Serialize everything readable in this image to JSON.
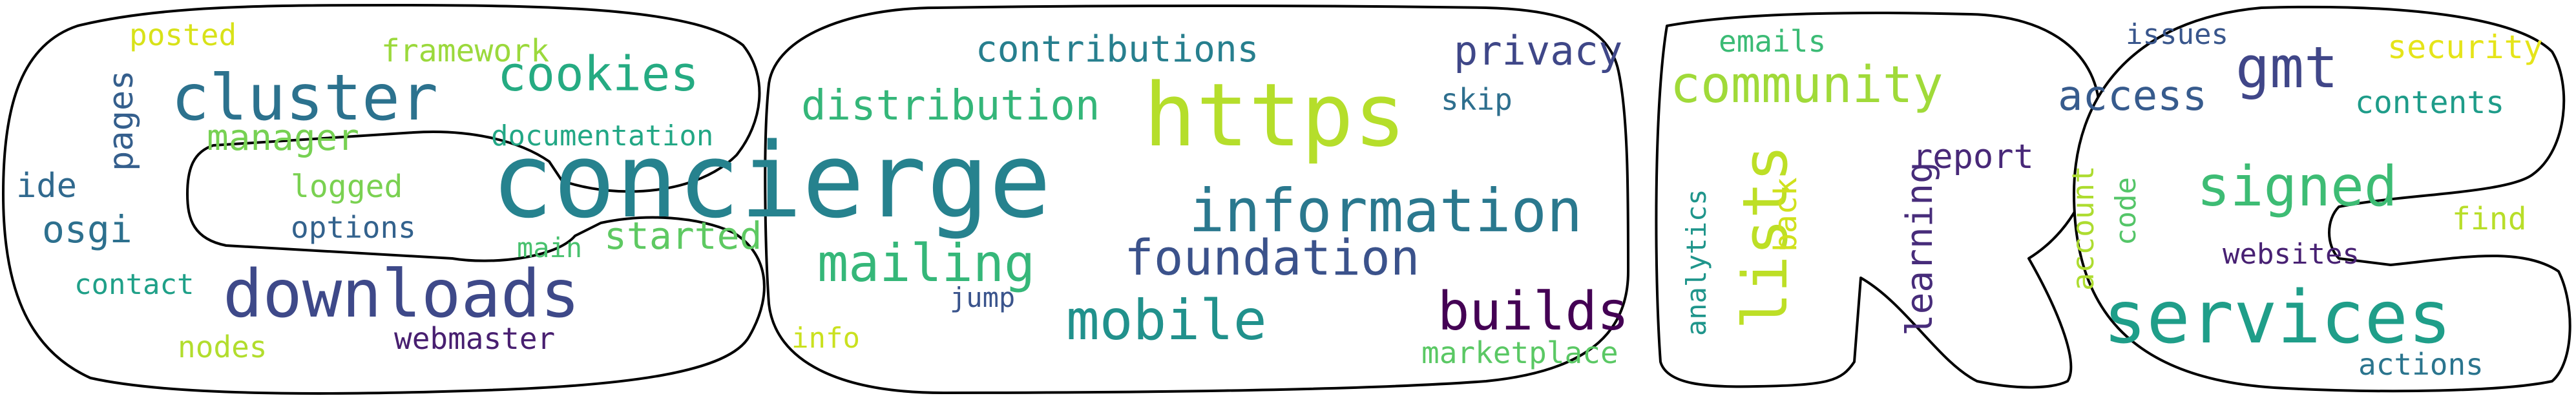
{
  "word_cloud": {
    "words": [
      {
        "text": "https",
        "color": "#b5de2b"
      },
      {
        "text": "concierge",
        "color": "#26828e"
      },
      {
        "text": "information",
        "color": "#2a788e"
      },
      {
        "text": "downloads",
        "color": "#3e4989"
      },
      {
        "text": "services",
        "color": "#1f9e89"
      },
      {
        "text": "cluster",
        "color": "#2c728e"
      },
      {
        "text": "mailing",
        "color": "#35b779"
      },
      {
        "text": "foundation",
        "color": "#3b528b"
      },
      {
        "text": "mobile",
        "color": "#21918c"
      },
      {
        "text": "community",
        "color": "#a0da39"
      },
      {
        "text": "signed",
        "color": "#3dbc74"
      },
      {
        "text": "lists",
        "color": "#bddf26"
      },
      {
        "text": "cookies",
        "color": "#25ab82"
      },
      {
        "text": "distribution",
        "color": "#34b679"
      },
      {
        "text": "builds",
        "color": "#440154"
      },
      {
        "text": "gmt",
        "color": "#404688"
      },
      {
        "text": "contributions",
        "color": "#277f8e"
      },
      {
        "text": "privacy",
        "color": "#3f4788"
      },
      {
        "text": "access",
        "color": "#375b8d"
      },
      {
        "text": "manager",
        "color": "#77d153"
      },
      {
        "text": "started",
        "color": "#5ec962"
      },
      {
        "text": "osgi",
        "color": "#2d708e"
      },
      {
        "text": "pages",
        "color": "#355f8d"
      },
      {
        "text": "learning",
        "color": "#472c7a"
      },
      {
        "text": "report",
        "color": "#482878"
      },
      {
        "text": "security",
        "color": "#e5e419"
      },
      {
        "text": "contents",
        "color": "#1e9c89"
      },
      {
        "text": "logged",
        "color": "#7ad151"
      },
      {
        "text": "documentation",
        "color": "#22a785"
      },
      {
        "text": "framework",
        "color": "#9bd93c"
      },
      {
        "text": "back",
        "color": "#d0e11c"
      },
      {
        "text": "account",
        "color": "#addc30"
      },
      {
        "text": "find",
        "color": "#b8de29"
      },
      {
        "text": "code",
        "color": "#54c568"
      },
      {
        "text": "websites",
        "color": "#482173"
      },
      {
        "text": "ide",
        "color": "#30698e"
      },
      {
        "text": "options",
        "color": "#33628d"
      },
      {
        "text": "main",
        "color": "#48c16e"
      },
      {
        "text": "contact",
        "color": "#1fa088"
      },
      {
        "text": "nodes",
        "color": "#b2dd2d"
      },
      {
        "text": "webmaster",
        "color": "#481f70"
      },
      {
        "text": "jump",
        "color": "#3a548c"
      },
      {
        "text": "info",
        "color": "#cae11f"
      },
      {
        "text": "marketplace",
        "color": "#5ac864"
      },
      {
        "text": "skip",
        "color": "#2e6f8e"
      },
      {
        "text": "emails",
        "color": "#3bbb75"
      },
      {
        "text": "issues",
        "color": "#39568c"
      },
      {
        "text": "analytics",
        "color": "#1f958b"
      },
      {
        "text": "posted",
        "color": "#d8e219"
      },
      {
        "text": "actions",
        "color": "#2b758e"
      }
    ]
  }
}
